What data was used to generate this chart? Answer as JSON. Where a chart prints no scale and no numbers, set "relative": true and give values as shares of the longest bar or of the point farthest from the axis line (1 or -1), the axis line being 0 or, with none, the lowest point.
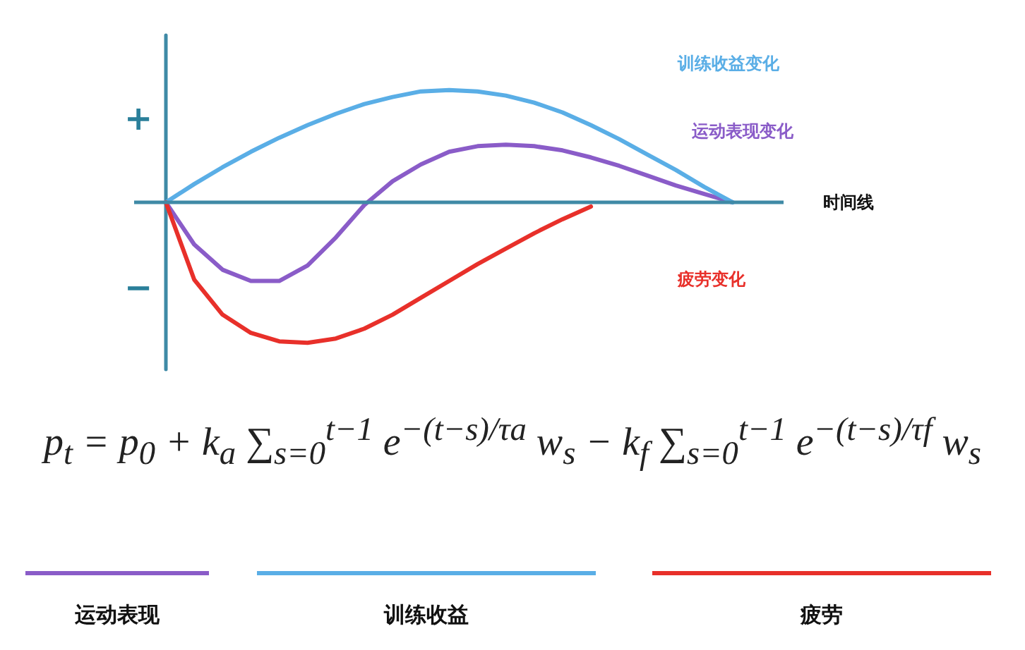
{
  "chart_data": {
    "type": "line",
    "relative": true,
    "xlabel": "时间线",
    "legend": false,
    "grid": false,
    "marker": "none",
    "line_style": "solid",
    "categories": [
      null,
      null,
      null,
      null,
      null,
      null,
      null,
      null,
      null,
      null,
      null,
      null,
      null,
      null,
      null,
      null,
      null,
      null,
      null,
      null,
      null
    ],
    "series": [
      {
        "name": "运动表现变化",
        "color": "#8a5cc8",
        "values": [
          0,
          -0.3,
          -0.48,
          -0.56,
          -0.56,
          -0.45,
          -0.25,
          -0.02,
          0.15,
          0.27,
          0.36,
          0.4,
          0.41,
          0.4,
          0.37,
          0.32,
          0.26,
          0.19,
          0.12,
          0.06,
          0
        ]
      },
      {
        "name": "训练收益变化",
        "color": "#5aaee6",
        "values": [
          0,
          0.13,
          0.25,
          0.36,
          0.46,
          0.55,
          0.63,
          0.7,
          0.75,
          0.79,
          0.8,
          0.79,
          0.76,
          0.71,
          0.64,
          0.55,
          0.45,
          0.34,
          0.23,
          0.11,
          0
        ]
      },
      {
        "name": "疲劳变化",
        "color": "#e8302a",
        "values": [
          0,
          -0.55,
          -0.8,
          -0.93,
          -0.99,
          -1,
          -0.97,
          -0.9,
          -0.8,
          -0.68,
          -0.56,
          -0.44,
          -0.33,
          -0.22,
          -0.12,
          -0.03,
          null,
          null,
          null,
          null,
          null
        ]
      }
    ],
    "ref_lines": [
      {
        "axis": "y",
        "value": 0,
        "color": "#3f8aa6"
      }
    ],
    "annotations": [
      "+",
      "−",
      "p$_{t}$ = p$_{0}$ + k$_{a}$ ∑$_{s=0}$$^{t−1}$ e$^{−(t−s)/τa}$ w$_{s}$ − k$_{f}$ ∑$_{s=0}$$^{t−1}$ e$^{−(t−s)/τf}$ w$_{s}$",
      "运动表现",
      "训练收益",
      "疲劳"
    ]
  }
}
